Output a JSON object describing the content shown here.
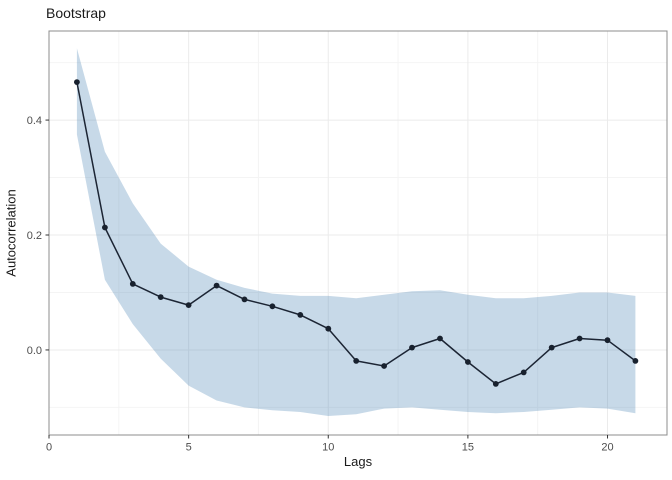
{
  "chart_data": {
    "type": "line",
    "title": "Bootstrap",
    "xlabel": "Lags",
    "ylabel": "Autocorrelation",
    "x": [
      1,
      2,
      3,
      4,
      5,
      6,
      7,
      8,
      9,
      10,
      11,
      12,
      13,
      14,
      15,
      16,
      17,
      18,
      19,
      20,
      21
    ],
    "series": [
      {
        "name": "autocorrelation",
        "values": [
          0.466,
          0.213,
          0.115,
          0.092,
          0.078,
          0.112,
          0.088,
          0.076,
          0.061,
          0.037,
          -0.019,
          -0.028,
          0.004,
          0.02,
          -0.021,
          -0.059,
          -0.039,
          0.004,
          0.02,
          0.017,
          -0.019
        ]
      }
    ],
    "ribbon": {
      "name": "bootstrap-confidence-band",
      "lower": [
        0.375,
        0.122,
        0.045,
        -0.015,
        -0.062,
        -0.088,
        -0.1,
        -0.105,
        -0.108,
        -0.115,
        -0.112,
        -0.102,
        -0.1,
        -0.104,
        -0.108,
        -0.11,
        -0.108,
        -0.104,
        -0.1,
        -0.102,
        -0.11
      ],
      "upper": [
        0.525,
        0.345,
        0.255,
        0.185,
        0.145,
        0.122,
        0.108,
        0.098,
        0.094,
        0.094,
        0.09,
        0.096,
        0.102,
        0.104,
        0.096,
        0.09,
        0.09,
        0.094,
        0.1,
        0.1,
        0.094
      ]
    },
    "x_ticks": [
      {
        "v": 0,
        "label": "0"
      },
      {
        "v": 5,
        "label": "5"
      },
      {
        "v": 10,
        "label": "10"
      },
      {
        "v": 15,
        "label": "15"
      },
      {
        "v": 20,
        "label": "20"
      }
    ],
    "y_ticks": [
      {
        "v": 0.0,
        "label": "0.0"
      },
      {
        "v": 0.2,
        "label": "0.2"
      },
      {
        "v": 0.4,
        "label": "0.4"
      }
    ],
    "x_minor": [
      2.5,
      7.5,
      12.5,
      17.5
    ],
    "y_minor": [
      -0.1,
      0.1,
      0.3,
      0.5
    ],
    "xlim": [
      0,
      22.13
    ],
    "ylim": [
      -0.148,
      0.555
    ],
    "grid": true,
    "legend_position": "none",
    "colors": {
      "ribbon_fill": "#4682b4",
      "ribbon_alpha": 0.3,
      "line": "#1c2534",
      "point": "#18212e",
      "grid_major": "#ebebeb",
      "grid_minor": "#f4f4f4",
      "panel_border": "#8c8c8c",
      "panel_background": "#ffffff",
      "tick_mark": "#333333",
      "tick_text": "#4d4d4d",
      "title_text": "#1a1a1a"
    }
  }
}
